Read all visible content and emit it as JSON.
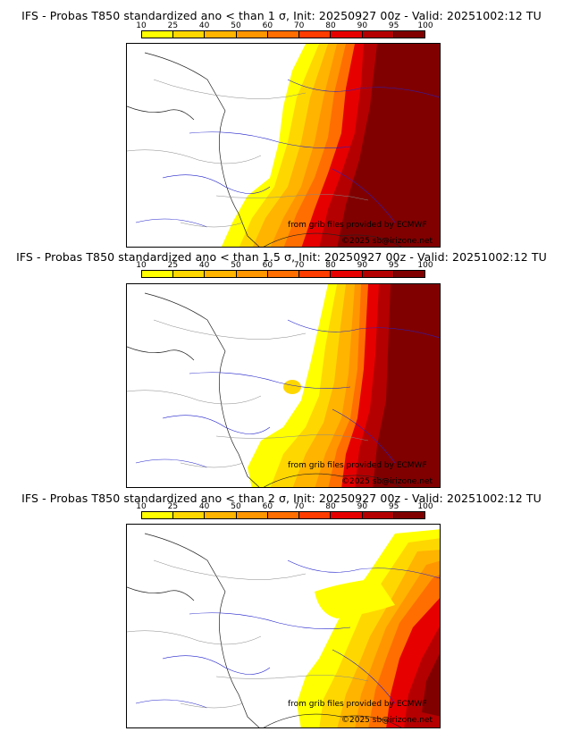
{
  "colorbar": {
    "ticks": [
      "10",
      "25",
      "40",
      "50",
      "60",
      "70",
      "80",
      "90",
      "95",
      "100"
    ],
    "colors": [
      "#ffff00",
      "#ffd700",
      "#ffb400",
      "#ff9600",
      "#ff6e00",
      "#ff3c00",
      "#e60000",
      "#b40000",
      "#800000"
    ]
  },
  "panels": [
    {
      "title": "IFS - Probas T850  standardized ano < than 1 σ, Init: 20250927 00z - Valid: 20251002:12 TU",
      "credit_grib": "from grib files provided by ECMWF",
      "credit_copy": "©2025 sb@irizone.net"
    },
    {
      "title": "IFS - Probas T850  standardized ano < than 1.5 σ, Init: 20250927 00z - Valid: 20251002:12 TU",
      "credit_grib": "from grib files provided by ECMWF",
      "credit_copy": "©2025 sb@irizone.net"
    },
    {
      "title": "IFS - Probas T850  standardized ano < than 2 σ, Init: 20250927 00z - Valid: 20251002:12 TU",
      "credit_grib": "from grib files provided by ECMWF",
      "credit_copy": "©2025 sb@irizone.net"
    }
  ]
}
